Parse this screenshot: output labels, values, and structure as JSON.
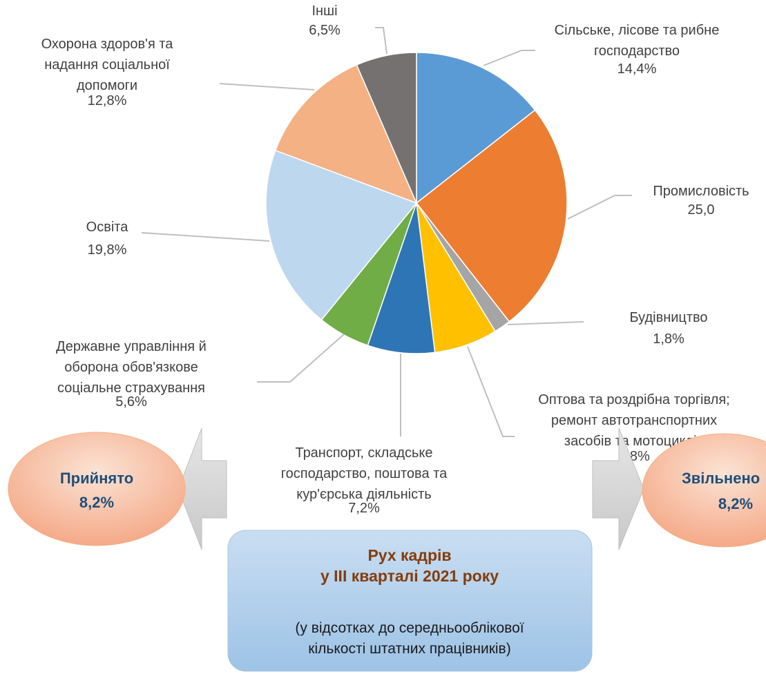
{
  "chart_data": {
    "type": "pie",
    "categories": [
      "Сільське, лісове та рибне\nгосподарство",
      "Промисловість",
      "Будівництво",
      "Оптова та роздрібна торгівля;\nремонт автотранспортних\nзасобів та мотоциклів",
      "Транспорт, складське\nгосподарство, поштова та\nкур'єрська діяльність",
      "Державне управління й\nоборона обов'язкове\nсоціальне страхування",
      "Освіта",
      "Охорона здоров'я та\nнадання соціальної\nдопомоги",
      "Інші"
    ],
    "values": [
      14.4,
      25.0,
      1.8,
      6.8,
      7.2,
      5.6,
      19.8,
      12.8,
      6.5
    ],
    "value_labels": [
      "14,4%",
      "25,0",
      "1,8%",
      "6,8%",
      "7,2%",
      "5,6%",
      "19,8%",
      "12,8%",
      "6,5%"
    ],
    "colors": [
      "#5b9bd5",
      "#ed7d31",
      "#a5a5a5",
      "#ffc000",
      "#2e75b6",
      "#70ad47",
      "#bdd7ee",
      "#f4b183",
      "#767171"
    ]
  },
  "movement": {
    "title": "Рух кадрів\nу III кварталі 2021 року",
    "note": "(у відсотках до середньооблікової\nкількості штатних працівників)",
    "hired": {
      "label": "Прийнято",
      "value": "8,2%"
    },
    "dismissed": {
      "label": "Звільнено",
      "value": "8,2%"
    }
  }
}
